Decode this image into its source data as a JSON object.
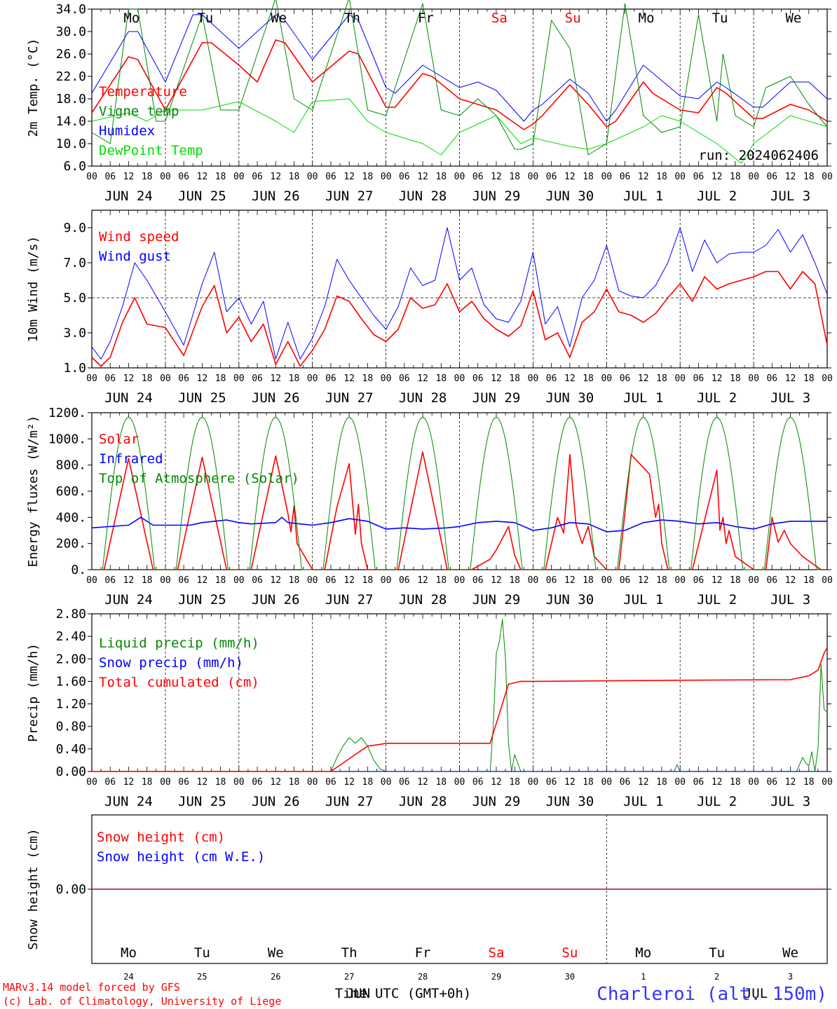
{
  "colors": {
    "red": "#ff0000",
    "green": "#008800",
    "blue": "#0000ff",
    "lightgreen": "#00dd00",
    "purple": "#800080",
    "axis": "#000000"
  },
  "run_label": "run: 2024062406",
  "footer": {
    "credit1": "MARv3.14 model forced by GFS",
    "credit2": "(c) Lab. of Climatology, University of Liege",
    "time_label": "Time UTC (GMT+0h)",
    "overlap_label": "JUN",
    "overlap_label2": "JUL",
    "station": "Charleroi (alt. 150m)"
  },
  "chart_data": [
    {
      "type": "line",
      "ylabel": "2m Temp. (°C)",
      "ylim": [
        6,
        34
      ],
      "yticks": [
        "6.0",
        "10.0",
        "14.0",
        "18.0",
        "22.0",
        "26.0",
        "30.0",
        "34.0"
      ],
      "day_labels": [
        "Mo",
        "Tu",
        "We",
        "Th",
        "Fr",
        "Sa",
        "Su",
        "Mo",
        "Tu",
        "We"
      ],
      "date_labels": [
        "JUN 24",
        "JUN 25",
        "JUN 26",
        "JUN 27",
        "JUN 28",
        "JUN 29",
        "JUN 30",
        "JUL  1",
        "JUL  2",
        "JUL  3"
      ],
      "hour_labels": [
        "00",
        "06",
        "12",
        "18"
      ],
      "series": [
        {
          "name": "Temperature",
          "color": "red",
          "x": [
            0,
            12,
            15,
            24,
            36,
            39,
            48,
            54,
            60,
            63,
            72,
            84,
            87,
            96,
            99,
            108,
            111,
            120,
            123,
            132,
            141,
            144,
            147,
            156,
            162,
            168,
            171,
            180,
            183,
            192,
            198,
            204,
            207,
            216,
            219,
            228,
            234,
            240
          ],
          "values": [
            15.5,
            25.5,
            25,
            16,
            28,
            28,
            24,
            21,
            28.5,
            28,
            21,
            26.5,
            26,
            16.5,
            16.5,
            22.5,
            22,
            18,
            17.5,
            16,
            12.5,
            13.5,
            15,
            20.5,
            17,
            13,
            14,
            21,
            19,
            16,
            15.5,
            20,
            19,
            14.5,
            14.5,
            17,
            16,
            14
          ]
        },
        {
          "name": "Vigne temp",
          "color": "green",
          "x": [
            0,
            6,
            12,
            15,
            21,
            24,
            36,
            42,
            48,
            60,
            66,
            72,
            84,
            90,
            96,
            108,
            114,
            120,
            126,
            132,
            138,
            140,
            144,
            150,
            156,
            162,
            168,
            174,
            180,
            186,
            192,
            198,
            204,
            206,
            210,
            216,
            220,
            228,
            234,
            240
          ],
          "values": [
            12,
            10,
            34,
            34,
            14,
            14,
            33,
            16,
            16,
            36,
            18,
            16,
            36,
            16,
            15,
            35,
            16,
            15,
            18,
            15,
            9,
            9,
            10,
            32,
            27,
            8,
            10,
            35,
            15,
            12,
            13,
            33,
            14,
            26,
            15,
            13,
            20,
            22,
            17,
            13
          ]
        },
        {
          "name": "Humidex",
          "color": "blue",
          "x": [
            0,
            12,
            15,
            24,
            33,
            36,
            48,
            60,
            63,
            72,
            84,
            87,
            96,
            99,
            108,
            111,
            120,
            126,
            132,
            141,
            144,
            147,
            156,
            162,
            168,
            171,
            180,
            192,
            198,
            204,
            207,
            216,
            219,
            228,
            234,
            240
          ],
          "values": [
            19,
            30,
            30,
            21,
            33,
            33,
            27,
            33,
            32,
            25,
            33,
            32,
            20,
            19,
            24,
            23,
            20,
            21,
            19.5,
            14,
            16,
            17,
            21.5,
            19,
            14,
            16,
            24,
            18.5,
            18,
            21,
            20,
            16.5,
            16.5,
            21,
            21,
            18
          ]
        },
        {
          "name": "DewPoint Temp",
          "color": "lightgreen",
          "x": [
            0,
            12,
            18,
            24,
            36,
            48,
            60,
            66,
            72,
            84,
            90,
            96,
            108,
            114,
            120,
            132,
            140,
            144,
            156,
            162,
            168,
            180,
            186,
            192,
            204,
            212,
            216,
            228,
            234,
            240
          ],
          "values": [
            14,
            15.5,
            14,
            16,
            16,
            17.5,
            14,
            12,
            17.5,
            18,
            14,
            12,
            10,
            8,
            12,
            15,
            10,
            11,
            9.5,
            9,
            10,
            13,
            15,
            14,
            10,
            6.5,
            10,
            15,
            14,
            13
          ]
        }
      ]
    },
    {
      "type": "line",
      "ylabel": "10m Wind (m/s)",
      "ylim": [
        1,
        10
      ],
      "yticks": [
        "1.0",
        "3.0",
        "5.0",
        "7.0",
        "9.0"
      ],
      "reference_line": 5.0,
      "date_labels": [
        "JUN 24",
        "JUN 25",
        "JUN 26",
        "JUN 27",
        "JUN 28",
        "JUN 29",
        "JUN 30",
        "JUL  1",
        "JUL  2",
        "JUL  3"
      ],
      "hour_labels": [
        "00",
        "06",
        "12",
        "18"
      ],
      "series": [
        {
          "name": "Wind speed",
          "color": "red",
          "x": [
            0,
            3,
            6,
            10,
            14,
            18,
            24,
            30,
            36,
            40,
            44,
            48,
            52,
            56,
            60,
            64,
            68,
            72,
            76,
            80,
            84,
            88,
            92,
            96,
            100,
            104,
            108,
            112,
            116,
            120,
            124,
            128,
            132,
            136,
            140,
            144,
            148,
            152,
            156,
            160,
            164,
            168,
            172,
            176,
            180,
            184,
            188,
            192,
            196,
            200,
            204,
            208,
            212,
            216,
            220,
            224,
            228,
            232,
            236,
            240
          ],
          "values": [
            1.6,
            1.1,
            1.6,
            3.6,
            5.0,
            3.5,
            3.3,
            1.7,
            4.5,
            5.7,
            3.0,
            3.9,
            2.5,
            3.5,
            1.2,
            2.5,
            1.1,
            2.0,
            3.2,
            5.1,
            4.8,
            3.8,
            2.9,
            2.5,
            3.2,
            5.0,
            4.4,
            4.6,
            5.8,
            4.2,
            4.8,
            3.8,
            3.2,
            2.8,
            3.4,
            5.4,
            2.6,
            3.0,
            1.6,
            3.6,
            4.2,
            5.5,
            4.2,
            4.0,
            3.6,
            4.1,
            5.0,
            5.8,
            4.8,
            6.2,
            5.5,
            5.8,
            6.0,
            6.2,
            6.5,
            6.5,
            5.5,
            6.5,
            5.8,
            2.3
          ]
        },
        {
          "name": "Wind gust",
          "color": "blue",
          "x": [
            0,
            3,
            6,
            10,
            14,
            18,
            24,
            30,
            36,
            40,
            44,
            48,
            52,
            56,
            60,
            64,
            68,
            72,
            76,
            80,
            84,
            88,
            92,
            96,
            100,
            104,
            108,
            112,
            116,
            120,
            124,
            128,
            132,
            136,
            140,
            144,
            148,
            152,
            156,
            160,
            164,
            168,
            172,
            176,
            180,
            184,
            188,
            192,
            196,
            200,
            204,
            208,
            212,
            216,
            220,
            224,
            228,
            232,
            236,
            240
          ],
          "values": [
            2.2,
            1.5,
            2.5,
            4.5,
            7.0,
            6.0,
            4.2,
            2.3,
            5.8,
            7.6,
            4.2,
            5.0,
            3.5,
            4.8,
            1.5,
            3.6,
            1.5,
            2.7,
            4.5,
            7.2,
            6.0,
            5.0,
            4.0,
            3.2,
            4.5,
            6.7,
            5.7,
            6.0,
            9.0,
            6.0,
            6.7,
            4.6,
            3.8,
            3.6,
            4.8,
            7.6,
            3.5,
            4.5,
            2.2,
            5.0,
            6.0,
            8.0,
            5.4,
            5.1,
            5.0,
            5.7,
            7.0,
            9.0,
            6.5,
            8.3,
            7.0,
            7.5,
            7.6,
            7.6,
            8.0,
            8.9,
            7.6,
            8.6,
            7.0,
            5.2
          ]
        }
      ]
    },
    {
      "type": "line",
      "ylabel": "Energy fluxes (W/m²)",
      "ylim": [
        0,
        1200
      ],
      "yticks": [
        "0.",
        "200.",
        "400.",
        "600.",
        "800.",
        "1000.",
        "1200."
      ],
      "date_labels": [
        "JUN 24",
        "JUN 25",
        "JUN 26",
        "JUN 27",
        "JUN 28",
        "JUN 29",
        "JUN 30",
        "JUL  1",
        "JUL  2",
        "JUL  3"
      ],
      "hour_labels": [
        "00",
        "06",
        "12",
        "18"
      ],
      "series": [
        {
          "name": "Solar",
          "color": "red",
          "x": [
            0,
            4,
            12,
            20,
            24,
            28,
            36,
            44,
            48,
            52,
            60,
            64,
            65,
            66,
            67,
            72,
            76,
            80,
            84,
            86,
            87,
            88,
            90,
            96,
            100,
            108,
            116,
            120,
            124,
            130,
            132,
            136,
            138,
            140,
            144,
            148,
            152,
            154,
            156,
            158,
            160,
            162,
            164,
            168,
            172,
            176,
            182,
            184,
            185,
            186,
            188,
            192,
            196,
            204,
            205,
            206,
            207,
            208,
            210,
            216,
            220,
            222,
            224,
            226,
            228,
            232,
            238,
            240
          ],
          "values": [
            0,
            0,
            850,
            0,
            0,
            0,
            860,
            0,
            0,
            0,
            870,
            430,
            290,
            490,
            200,
            0,
            0,
            480,
            810,
            270,
            500,
            200,
            0,
            0,
            0,
            900,
            0,
            0,
            0,
            80,
            150,
            330,
            110,
            0,
            0,
            0,
            400,
            280,
            880,
            350,
            200,
            330,
            100,
            0,
            0,
            880,
            730,
            400,
            500,
            200,
            0,
            0,
            0,
            760,
            300,
            400,
            200,
            300,
            100,
            0,
            0,
            400,
            210,
            300,
            200,
            100,
            0,
            0
          ]
        },
        {
          "name": "Infrared",
          "color": "blue",
          "x": [
            0,
            12,
            16,
            20,
            32,
            36,
            44,
            48,
            52,
            60,
            62,
            64,
            68,
            72,
            78,
            84,
            90,
            96,
            102,
            108,
            116,
            120,
            126,
            132,
            138,
            144,
            150,
            156,
            162,
            168,
            174,
            180,
            186,
            192,
            198,
            204,
            210,
            216,
            222,
            228,
            234,
            240
          ],
          "values": [
            320,
            340,
            400,
            340,
            340,
            360,
            380,
            360,
            350,
            360,
            400,
            360,
            350,
            340,
            360,
            390,
            370,
            310,
            320,
            310,
            320,
            330,
            360,
            370,
            360,
            300,
            320,
            360,
            350,
            290,
            300,
            360,
            380,
            370,
            350,
            360,
            330,
            310,
            350,
            370,
            370,
            370
          ]
        },
        {
          "name": "Top of Atmosphere (Solar)",
          "color": "green",
          "toa": true,
          "peak": 1165,
          "sunrise": 3.5,
          "sunset": 20.5
        }
      ]
    },
    {
      "type": "line",
      "ylabel": "Precip (mm/h)",
      "ylim": [
        0,
        2.8
      ],
      "yticks": [
        "0.00",
        "0.40",
        "0.80",
        "1.20",
        "1.60",
        "2.00",
        "2.40",
        "2.80"
      ],
      "date_labels": [
        "JUN 24",
        "JUN 25",
        "JUN 26",
        "JUN 27",
        "JUN 28",
        "JUN 29",
        "JUN 30",
        "JUL  1",
        "JUL  2",
        "JUL  3"
      ],
      "hour_labels": [
        "00",
        "06",
        "12",
        "18"
      ],
      "series": [
        {
          "name": "Liquid precip (mm/h)",
          "color": "green",
          "x": [
            0,
            78,
            80,
            82,
            84,
            86,
            88,
            90,
            92,
            94,
            96,
            130,
            131,
            132,
            133,
            134,
            135,
            136,
            137,
            138,
            140,
            142,
            150,
            190,
            191,
            192,
            230,
            232,
            233,
            234,
            235,
            236,
            237,
            238,
            239,
            240
          ],
          "values": [
            0,
            0,
            0.25,
            0.45,
            0.6,
            0.5,
            0.6,
            0.45,
            0.2,
            0.05,
            0,
            0,
            0.8,
            2.1,
            2.3,
            2.7,
            2.0,
            0.5,
            0,
            0.3,
            0,
            0,
            0,
            0,
            0.12,
            0,
            0,
            0.25,
            0.15,
            0.1,
            0.35,
            0,
            0.4,
            1.9,
            1.1,
            1.05
          ]
        },
        {
          "name": "Snow precip (mm/h)",
          "color": "blue",
          "x": [
            0,
            240
          ],
          "values": [
            0,
            0
          ]
        },
        {
          "name": "Total cumulated (cm)",
          "color": "red",
          "x": [
            0,
            78,
            86,
            90,
            94,
            96,
            120,
            130,
            136,
            140,
            144,
            192,
            228,
            234,
            237,
            239,
            240
          ],
          "values": [
            0,
            0,
            0.3,
            0.45,
            0.48,
            0.5,
            0.5,
            0.5,
            1.55,
            1.6,
            1.6,
            1.62,
            1.63,
            1.7,
            1.8,
            2.1,
            2.2
          ]
        }
      ]
    },
    {
      "type": "line",
      "ylabel": "Snow height (cm)",
      "ylim": [
        -1,
        1
      ],
      "yticks": [
        "0.00"
      ],
      "day_labels": [
        "Mo",
        "Tu",
        "We",
        "Th",
        "Fr",
        "Sa",
        "Su",
        "Mo",
        "Tu",
        "We"
      ],
      "date_numbers": [
        "24",
        "25",
        "26",
        "27",
        "28",
        "29",
        "30",
        "1",
        "2",
        "3"
      ],
      "series": [
        {
          "name": "Snow height (cm)",
          "color": "red",
          "x": [
            0,
            240
          ],
          "values": [
            0,
            0
          ]
        },
        {
          "name": "Snow height (cm W.E.)",
          "color": "blue",
          "x": [
            0,
            240
          ],
          "values": [
            0,
            0
          ]
        }
      ]
    }
  ]
}
